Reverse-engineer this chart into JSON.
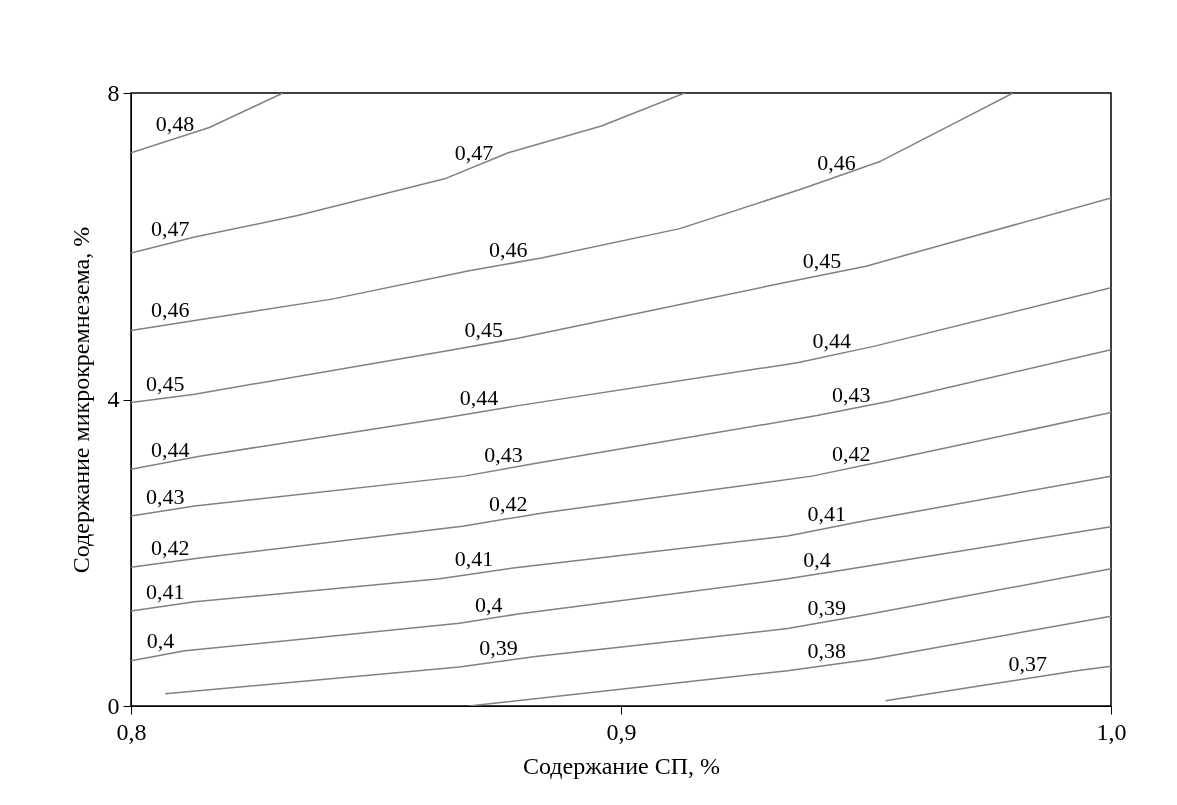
{
  "chart_data": {
    "type": "line",
    "xlabel": "Содержание СП, %",
    "ylabel": "Содержание микрокремнезема, %",
    "xlim": [
      0.8,
      1.0
    ],
    "ylim": [
      0,
      8
    ],
    "xticks": [
      {
        "value": 0.8,
        "label": "0,8"
      },
      {
        "value": 0.9,
        "label": "0,9"
      },
      {
        "value": 1.0,
        "label": "1,0"
      }
    ],
    "yticks": [
      0,
      4,
      8
    ],
    "grid": false,
    "legend": false,
    "marker": "none",
    "line_style": "solid",
    "series": [
      {
        "color": "#808080",
        "x": [
          0.8,
          0.816,
          0.831
        ],
        "values": [
          7.22,
          7.55,
          8.0
        ]
      },
      {
        "color": "#808080",
        "x": [
          0.8,
          0.813,
          0.834,
          0.864,
          0.877,
          0.896,
          0.913
        ],
        "values": [
          5.91,
          6.12,
          6.4,
          6.88,
          7.22,
          7.57,
          8.0
        ]
      },
      {
        "color": "#808080",
        "x": [
          0.8,
          0.813,
          0.841,
          0.869,
          0.884,
          0.912,
          0.937,
          0.953,
          0.967,
          0.98
        ],
        "values": [
          4.9,
          5.03,
          5.31,
          5.68,
          5.85,
          6.23,
          6.75,
          7.11,
          7.57,
          8.0
        ]
      },
      {
        "color": "#808080",
        "x": [
          0.8,
          0.813,
          0.864,
          0.879,
          0.933,
          0.95,
          1.0
        ],
        "values": [
          3.96,
          4.07,
          4.63,
          4.8,
          5.52,
          5.74,
          6.63
        ]
      },
      {
        "color": "#808080",
        "x": [
          0.8,
          0.814,
          0.863,
          0.879,
          0.936,
          0.952,
          1.0
        ],
        "values": [
          3.09,
          3.26,
          3.75,
          3.92,
          4.48,
          4.7,
          5.46
        ]
      },
      {
        "color": "#808080",
        "x": [
          0.8,
          0.813,
          0.868,
          0.883,
          0.94,
          0.955,
          1.0
        ],
        "values": [
          2.48,
          2.61,
          3.0,
          3.17,
          3.79,
          3.98,
          4.65
        ]
      },
      {
        "color": "#808080",
        "x": [
          0.8,
          0.814,
          0.868,
          0.884,
          0.939,
          0.954,
          1.0
        ],
        "values": [
          1.81,
          1.93,
          2.35,
          2.52,
          3.0,
          3.2,
          3.83
        ]
      },
      {
        "color": "#808080",
        "x": [
          0.8,
          0.813,
          0.863,
          0.878,
          0.934,
          0.95,
          1.0
        ],
        "values": [
          1.24,
          1.36,
          1.66,
          1.8,
          2.22,
          2.42,
          3.0
        ]
      },
      {
        "color": "#808080",
        "x": [
          0.8,
          0.811,
          0.867,
          0.879,
          0.934,
          0.946,
          1.0
        ],
        "values": [
          0.59,
          0.72,
          1.08,
          1.2,
          1.66,
          1.78,
          2.34
        ]
      },
      {
        "color": "#808080",
        "x": [
          0.807,
          0.867,
          0.883,
          0.934,
          0.95,
          1.0
        ],
        "values": [
          0.16,
          0.51,
          0.65,
          1.01,
          1.19,
          1.79
        ]
      },
      {
        "color": "#808080",
        "x": [
          0.869,
          0.934,
          0.951,
          1.0
        ],
        "values": [
          0,
          0.46,
          0.61,
          1.17
        ]
      },
      {
        "color": "#808080",
        "x": [
          0.954,
          0.974,
          0.993,
          1.0
        ],
        "values": [
          0.07,
          0.27,
          0.46,
          0.52
        ]
      }
    ],
    "annotations": [
      {
        "text": "0,48",
        "x": 0.809,
        "y": 7.41
      },
      {
        "text": "0,47",
        "x": 0.808,
        "y": 6.04
      },
      {
        "text": "0,47",
        "x": 0.87,
        "y": 7.04
      },
      {
        "text": "0,46",
        "x": 0.808,
        "y": 4.98
      },
      {
        "text": "0,46",
        "x": 0.877,
        "y": 5.77
      },
      {
        "text": "0,46",
        "x": 0.944,
        "y": 6.91
      },
      {
        "text": "0,45",
        "x": 0.807,
        "y": 4.02
      },
      {
        "text": "0,45",
        "x": 0.872,
        "y": 4.72
      },
      {
        "text": "0,45",
        "x": 0.941,
        "y": 5.62
      },
      {
        "text": "0,44",
        "x": 0.808,
        "y": 3.16
      },
      {
        "text": "0,44",
        "x": 0.871,
        "y": 3.84
      },
      {
        "text": "0,44",
        "x": 0.943,
        "y": 4.58
      },
      {
        "text": "0,43",
        "x": 0.807,
        "y": 2.55
      },
      {
        "text": "0,43",
        "x": 0.876,
        "y": 3.09
      },
      {
        "text": "0,43",
        "x": 0.947,
        "y": 3.88
      },
      {
        "text": "0,42",
        "x": 0.808,
        "y": 1.88
      },
      {
        "text": "0,42",
        "x": 0.877,
        "y": 2.45
      },
      {
        "text": "0,42",
        "x": 0.947,
        "y": 3.11
      },
      {
        "text": "0,41",
        "x": 0.807,
        "y": 1.3
      },
      {
        "text": "0,41",
        "x": 0.87,
        "y": 1.73
      },
      {
        "text": "0,41",
        "x": 0.942,
        "y": 2.32
      },
      {
        "text": "0,4",
        "x": 0.806,
        "y": 0.66
      },
      {
        "text": "0,4",
        "x": 0.873,
        "y": 1.14
      },
      {
        "text": "0,4",
        "x": 0.94,
        "y": 1.72
      },
      {
        "text": "0,39",
        "x": 0.875,
        "y": 0.58
      },
      {
        "text": "0,39",
        "x": 0.942,
        "y": 1.1
      },
      {
        "text": "0,38",
        "x": 0.942,
        "y": 0.53
      },
      {
        "text": "0,37",
        "x": 0.983,
        "y": 0.36
      }
    ]
  }
}
